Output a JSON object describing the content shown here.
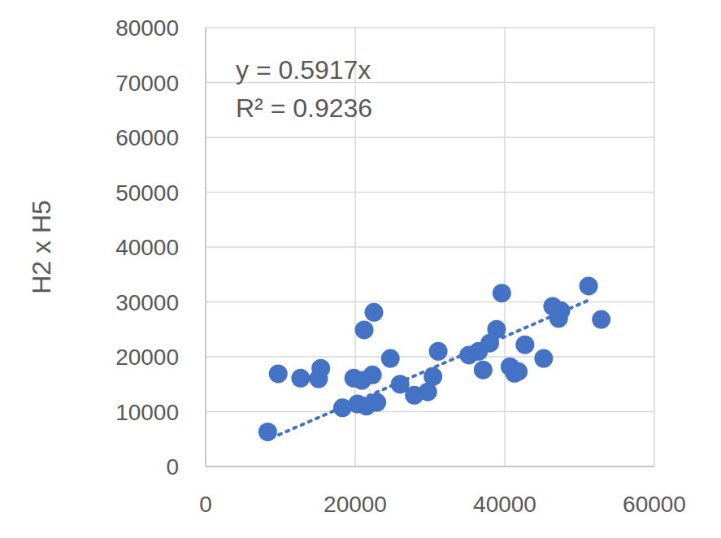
{
  "chart_data": {
    "type": "scatter",
    "y_label": "H2 x H5",
    "annotations": [
      "y = 0.5917x",
      "R² = 0.9236"
    ],
    "xlim": [
      0,
      60000
    ],
    "ylim": [
      0,
      80000
    ],
    "xticks": [
      0,
      20000,
      40000,
      60000
    ],
    "yticks": [
      0,
      10000,
      20000,
      30000,
      40000,
      50000,
      60000,
      70000,
      80000
    ],
    "grid": true,
    "series": [
      {
        "type": "scatter",
        "marker": "circle",
        "color": "#4472c4",
        "x": [
          8300,
          9700,
          12700,
          15100,
          15400,
          19800,
          20300,
          20900,
          21200,
          21500,
          22300,
          22500,
          22900,
          18300,
          24700,
          26000,
          27900,
          29700,
          30400,
          31100,
          35200,
          36500,
          37100,
          38000,
          38900,
          39600,
          40700,
          41300,
          41800,
          42700,
          45200,
          46400,
          47200,
          47500,
          51200,
          52900
        ],
        "values": [
          6300,
          16900,
          16100,
          16000,
          17900,
          16100,
          11400,
          15700,
          24900,
          11000,
          16700,
          28100,
          11700,
          10700,
          19700,
          15000,
          13000,
          13600,
          16400,
          21000,
          20300,
          21000,
          17600,
          22500,
          25000,
          31600,
          18200,
          17000,
          17300,
          22200,
          19700,
          29200,
          27000,
          28400,
          32900,
          26800
        ]
      },
      {
        "type": "line",
        "line_style": "dotted",
        "color": "#4472c4",
        "x": [
          8800,
          51200
        ],
        "values": [
          5200,
          30300
        ]
      }
    ]
  }
}
